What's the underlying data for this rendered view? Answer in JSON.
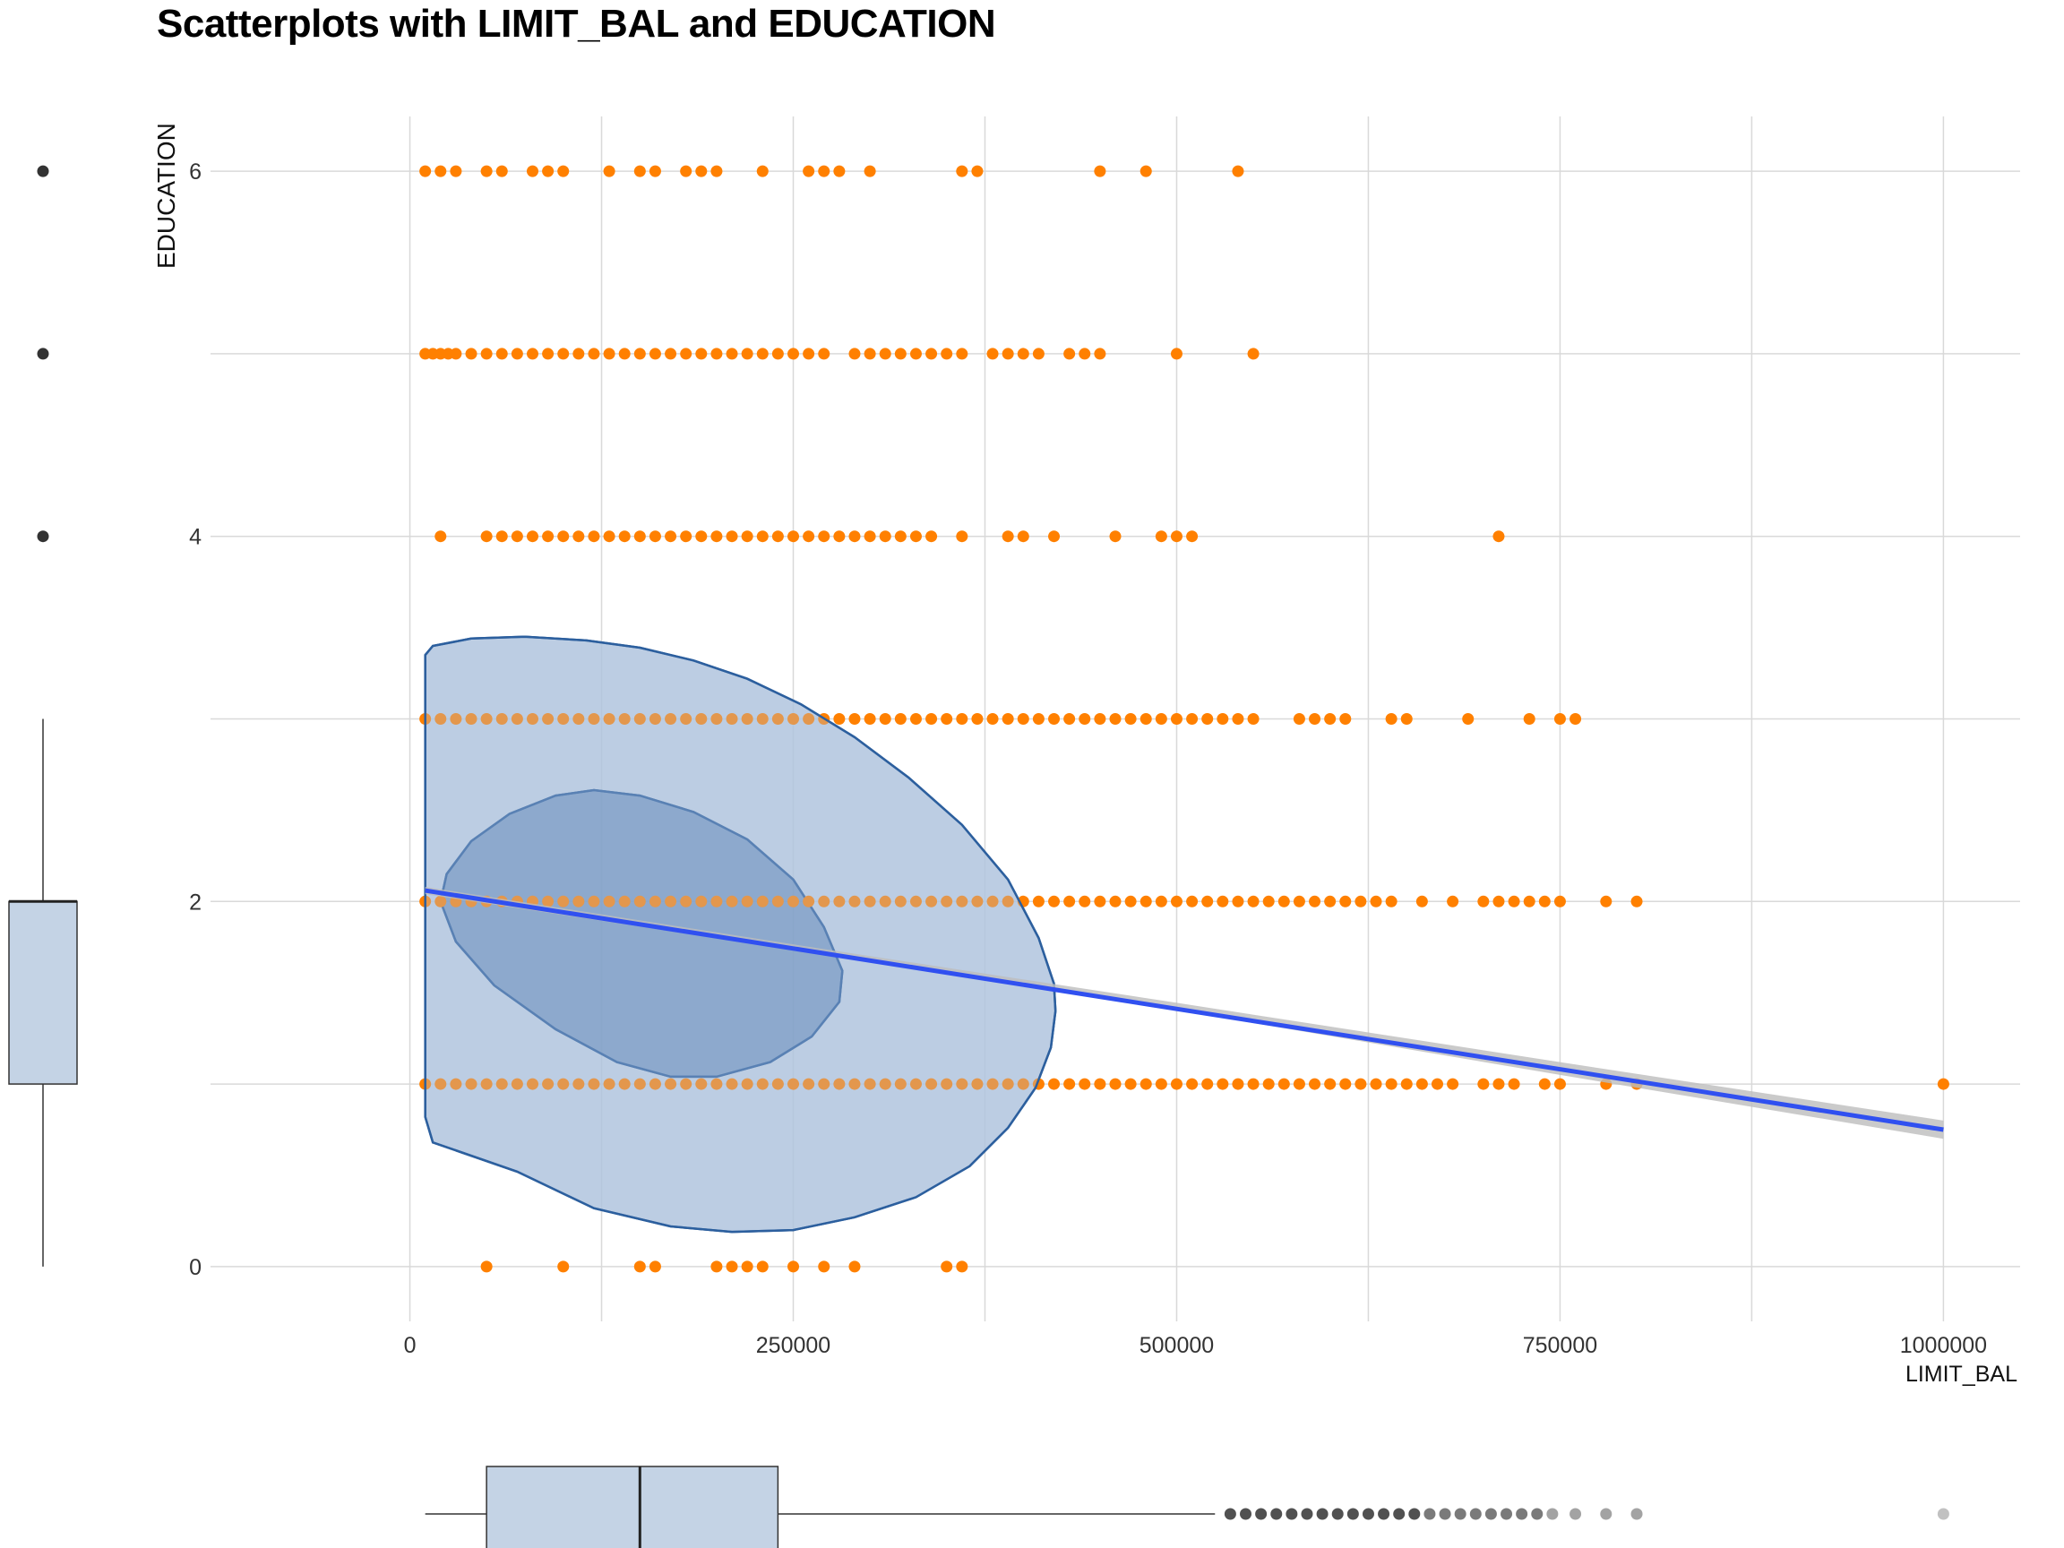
{
  "chart_data": {
    "type": "scatter",
    "title": "Scatterplots with LIMIT_BAL and EDUCATION",
    "xlabel": "LIMIT_BAL",
    "ylabel": "EDUCATION",
    "xlim": [
      -130000,
      1050000
    ],
    "ylim": [
      -0.3,
      6.3
    ],
    "x_ticks": [
      0,
      250000,
      500000,
      750000,
      1000000
    ],
    "x_tick_labels": [
      "0",
      "250000",
      "500000",
      "750000",
      "1000000"
    ],
    "y_ticks": [
      0,
      2,
      4,
      6
    ],
    "y_tick_labels": [
      "0",
      "2",
      "4",
      "6"
    ],
    "grid": true,
    "colors": {
      "points": "#ff8000",
      "regression_line": "#3050f0",
      "confidence_band": "#bdbdbd",
      "ellipse_fill": "#b0c4de",
      "ellipse_stroke": "#2c5f9e",
      "boxplot_fill": "#c4d3e5",
      "boxplot_stroke": "#333333"
    },
    "point_rows": [
      {
        "y": 6,
        "x": [
          10000,
          20000,
          30000,
          50000,
          60000,
          80000,
          90000,
          100000,
          130000,
          150000,
          160000,
          180000,
          190000,
          200000,
          230000,
          260000,
          270000,
          280000,
          300000,
          360000,
          370000,
          450000,
          480000,
          540000
        ]
      },
      {
        "y": 5,
        "x": [
          10000,
          15000,
          20000,
          25000,
          30000,
          40000,
          50000,
          60000,
          70000,
          80000,
          90000,
          100000,
          110000,
          120000,
          130000,
          140000,
          150000,
          160000,
          170000,
          180000,
          190000,
          200000,
          210000,
          220000,
          230000,
          240000,
          250000,
          260000,
          270000,
          290000,
          300000,
          310000,
          320000,
          330000,
          340000,
          350000,
          360000,
          380000,
          390000,
          400000,
          410000,
          430000,
          440000,
          450000,
          500000,
          550000
        ]
      },
      {
        "y": 4,
        "x": [
          20000,
          50000,
          60000,
          70000,
          80000,
          90000,
          100000,
          110000,
          120000,
          130000,
          140000,
          150000,
          160000,
          170000,
          180000,
          190000,
          200000,
          210000,
          220000,
          230000,
          240000,
          250000,
          260000,
          270000,
          280000,
          290000,
          300000,
          310000,
          320000,
          330000,
          340000,
          360000,
          390000,
          400000,
          420000,
          460000,
          490000,
          500000,
          510000,
          710000
        ]
      },
      {
        "y": 3,
        "x": [
          10000,
          20000,
          30000,
          40000,
          50000,
          60000,
          70000,
          80000,
          90000,
          100000,
          110000,
          120000,
          130000,
          140000,
          150000,
          160000,
          170000,
          180000,
          190000,
          200000,
          210000,
          220000,
          230000,
          240000,
          250000,
          260000,
          270000,
          280000,
          290000,
          300000,
          310000,
          320000,
          330000,
          340000,
          350000,
          360000,
          370000,
          380000,
          390000,
          400000,
          410000,
          420000,
          430000,
          440000,
          450000,
          460000,
          470000,
          480000,
          490000,
          500000,
          510000,
          520000,
          530000,
          540000,
          550000,
          580000,
          590000,
          600000,
          610000,
          640000,
          650000,
          690000,
          730000,
          750000,
          760000
        ]
      },
      {
        "y": 2,
        "x": [
          10000,
          20000,
          30000,
          40000,
          50000,
          60000,
          70000,
          80000,
          90000,
          100000,
          110000,
          120000,
          130000,
          140000,
          150000,
          160000,
          170000,
          180000,
          190000,
          200000,
          210000,
          220000,
          230000,
          240000,
          250000,
          260000,
          270000,
          280000,
          290000,
          300000,
          310000,
          320000,
          330000,
          340000,
          350000,
          360000,
          370000,
          380000,
          390000,
          400000,
          410000,
          420000,
          430000,
          440000,
          450000,
          460000,
          470000,
          480000,
          490000,
          500000,
          510000,
          520000,
          530000,
          540000,
          550000,
          560000,
          570000,
          580000,
          590000,
          600000,
          610000,
          620000,
          630000,
          640000,
          660000,
          680000,
          700000,
          710000,
          720000,
          730000,
          740000,
          750000,
          780000,
          800000
        ]
      },
      {
        "y": 1,
        "x": [
          10000,
          20000,
          30000,
          40000,
          50000,
          60000,
          70000,
          80000,
          90000,
          100000,
          110000,
          120000,
          130000,
          140000,
          150000,
          160000,
          170000,
          180000,
          190000,
          200000,
          210000,
          220000,
          230000,
          240000,
          250000,
          260000,
          270000,
          280000,
          290000,
          300000,
          310000,
          320000,
          330000,
          340000,
          350000,
          360000,
          370000,
          380000,
          390000,
          400000,
          410000,
          420000,
          430000,
          440000,
          450000,
          460000,
          470000,
          480000,
          490000,
          500000,
          510000,
          520000,
          530000,
          540000,
          550000,
          560000,
          570000,
          580000,
          590000,
          600000,
          610000,
          620000,
          630000,
          640000,
          650000,
          660000,
          670000,
          680000,
          700000,
          710000,
          720000,
          740000,
          750000,
          780000,
          800000,
          1000000
        ]
      },
      {
        "y": 0,
        "x": [
          50000,
          100000,
          150000,
          160000,
          200000,
          210000,
          220000,
          230000,
          250000,
          270000,
          290000,
          350000,
          360000
        ]
      }
    ],
    "regression_line": {
      "x": [
        10000,
        1000000
      ],
      "y": [
        2.06,
        0.75
      ]
    },
    "confidence_band": {
      "x": [
        10000,
        250000,
        500000,
        750000,
        1000000
      ],
      "lower": [
        2.04,
        1.735,
        1.405,
        1.05,
        0.7
      ],
      "upper": [
        2.08,
        1.765,
        1.445,
        1.12,
        0.8
      ]
    },
    "density_contours": [
      {
        "level": "outer",
        "points": [
          [
            10000,
            3.35
          ],
          [
            15000,
            3.4
          ],
          [
            40000,
            3.44
          ],
          [
            75000,
            3.45
          ],
          [
            115000,
            3.43
          ],
          [
            150000,
            3.39
          ],
          [
            185000,
            3.32
          ],
          [
            220000,
            3.22
          ],
          [
            255000,
            3.08
          ],
          [
            290000,
            2.9
          ],
          [
            325000,
            2.68
          ],
          [
            360000,
            2.42
          ],
          [
            390000,
            2.12
          ],
          [
            410000,
            1.8
          ],
          [
            420000,
            1.55
          ],
          [
            421000,
            1.4
          ],
          [
            418000,
            1.2
          ],
          [
            408000,
            0.98
          ],
          [
            390000,
            0.76
          ],
          [
            365000,
            0.55
          ],
          [
            330000,
            0.38
          ],
          [
            290000,
            0.27
          ],
          [
            250000,
            0.2
          ],
          [
            210000,
            0.19
          ],
          [
            170000,
            0.22
          ],
          [
            120000,
            0.32
          ],
          [
            70000,
            0.52
          ],
          [
            15000,
            0.68
          ],
          [
            10000,
            0.82
          ]
        ]
      },
      {
        "level": "inner",
        "points": [
          [
            20000,
            2.0
          ],
          [
            24000,
            2.15
          ],
          [
            40000,
            2.33
          ],
          [
            65000,
            2.48
          ],
          [
            95000,
            2.58
          ],
          [
            120000,
            2.61
          ],
          [
            150000,
            2.58
          ],
          [
            185000,
            2.49
          ],
          [
            220000,
            2.34
          ],
          [
            250000,
            2.12
          ],
          [
            270000,
            1.86
          ],
          [
            282000,
            1.62
          ],
          [
            280000,
            1.45
          ],
          [
            262000,
            1.26
          ],
          [
            235000,
            1.12
          ],
          [
            200000,
            1.04
          ],
          [
            170000,
            1.04
          ],
          [
            135000,
            1.12
          ],
          [
            95000,
            1.3
          ],
          [
            55000,
            1.54
          ],
          [
            30000,
            1.78
          ],
          [
            20000,
            2.0
          ]
        ]
      }
    ],
    "marginal_boxplot_x": {
      "whisker_min": 10000,
      "q1": 50000,
      "median": 150000,
      "q3": 240000,
      "whisker_max": 525000,
      "outliers": [
        535000,
        545000,
        555000,
        565000,
        575000,
        585000,
        595000,
        605000,
        615000,
        625000,
        635000,
        645000,
        655000,
        665000,
        675000,
        685000,
        695000,
        705000,
        715000,
        725000,
        735000,
        745000,
        760000,
        780000,
        800000,
        1000000
      ]
    },
    "marginal_boxplot_y": {
      "whisker_min": 0,
      "q1": 1,
      "median": 2,
      "q3": 2,
      "whisker_max": 3,
      "outliers": [
        4,
        5,
        6
      ]
    }
  }
}
